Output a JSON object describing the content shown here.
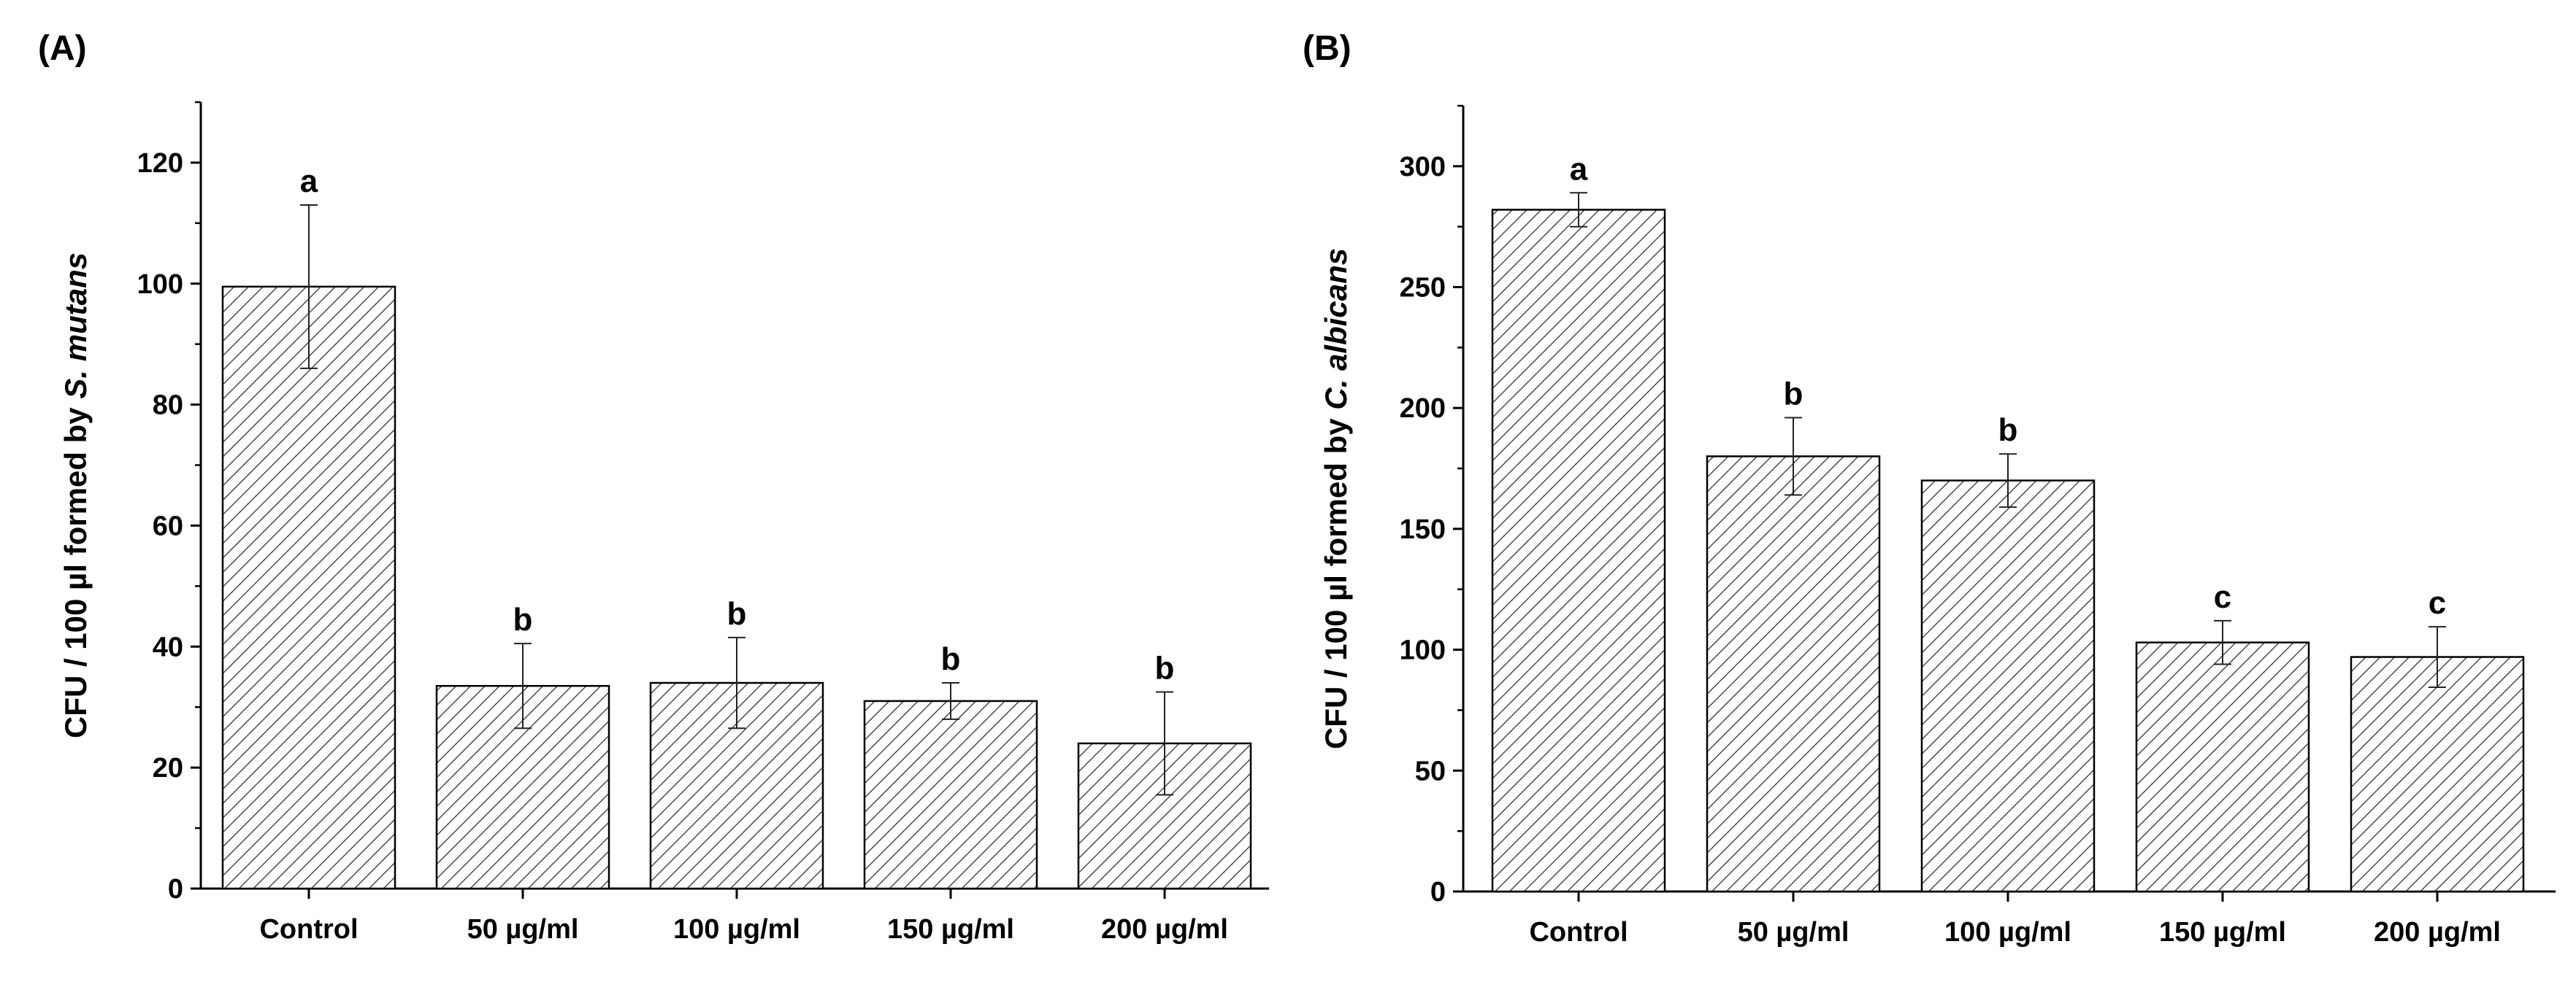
{
  "chart_data": [
    {
      "type": "bar",
      "panel_label": "(A)",
      "categories": [
        "Control",
        "50 µg/ml",
        "100 µg/ml",
        "150 µg/ml",
        "200 µg/ml"
      ],
      "values": [
        99.5,
        33.5,
        34,
        31,
        24
      ],
      "errors": [
        13.5,
        7,
        7.5,
        3,
        8.5
      ],
      "significance": [
        "a",
        "b",
        "b",
        "b",
        "b"
      ],
      "ylabel_prefix": "CFU / 100 µl formed by ",
      "ylabel_italic": "S. mutans",
      "xlabel": "",
      "ylim": [
        0,
        130
      ],
      "yticks": [
        0,
        20,
        40,
        60,
        80,
        100,
        120
      ],
      "ytick_labels": [
        "0",
        "20",
        "40",
        "60",
        "80",
        "100",
        "120"
      ],
      "pattern": "diagonal-hatch"
    },
    {
      "type": "bar",
      "panel_label": "(B)",
      "categories": [
        "Control",
        "50 µg/ml",
        "100 µg/ml",
        "150 µg/ml",
        "200 µg/ml"
      ],
      "values": [
        282,
        180,
        170,
        103,
        97
      ],
      "errors": [
        7,
        16,
        11,
        9,
        12.5
      ],
      "significance": [
        "a",
        "b",
        "b",
        "c",
        "c"
      ],
      "ylabel_prefix": "CFU / 100 µl formed by ",
      "ylabel_italic": "C. albicans",
      "xlabel": "",
      "ylim": [
        0,
        325
      ],
      "yticks": [
        0,
        50,
        100,
        150,
        200,
        250,
        300
      ],
      "ytick_labels": [
        "0",
        "50",
        "100",
        "150",
        "200",
        "250",
        "300"
      ],
      "pattern": "diagonal-hatch"
    }
  ]
}
